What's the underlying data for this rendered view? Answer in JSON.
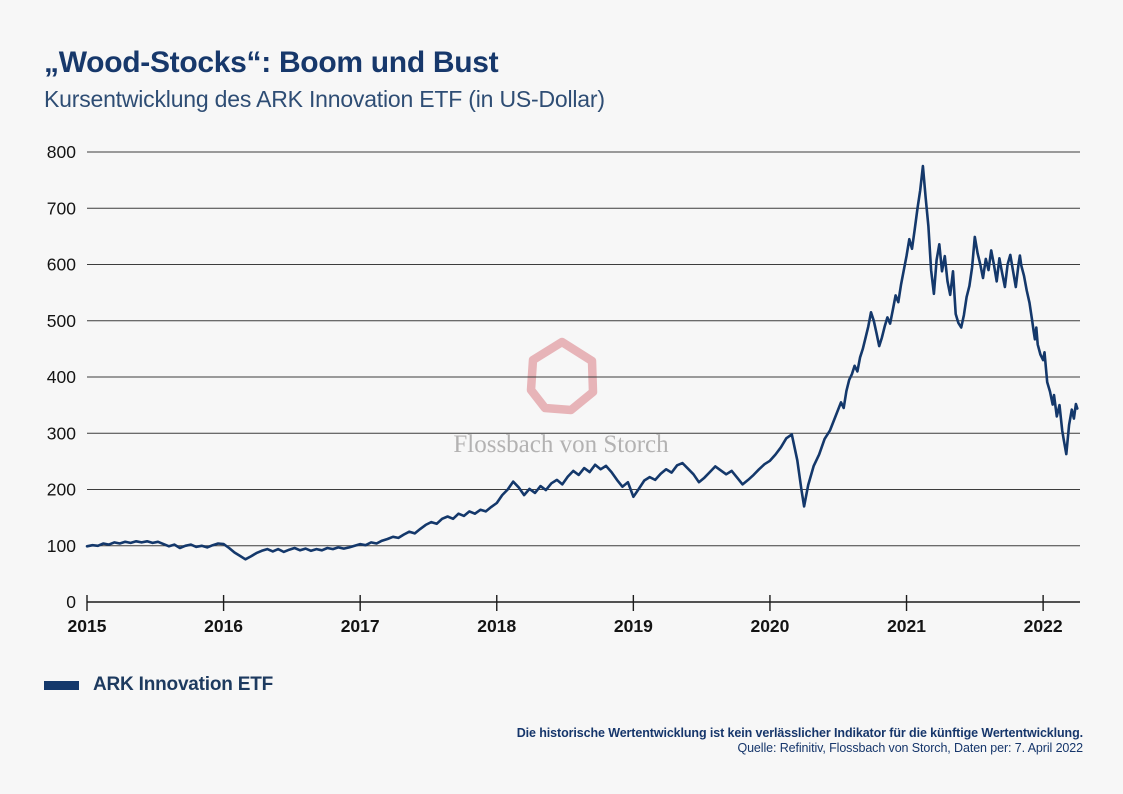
{
  "header": {
    "title": "„Wood-Stocks“: Boom und Bust",
    "subtitle": "Kursentwicklung des ARK Innovation ETF (in US-Dollar)"
  },
  "watermark": {
    "text": "Flossbach von Storch",
    "ring_color": "#e7b4b8",
    "text_color": "#b3b2b2"
  },
  "legend": {
    "label": "ARK Innovation ETF",
    "swatch_color": "#14386b"
  },
  "footer": {
    "disclaimer": "Die historische Wertentwicklung ist kein verlässlicher Indikator für die künftige Wertentwicklung.",
    "source": "Quelle: Refinitiv, Flossbach von Storch, Daten per: 7. April 2022"
  },
  "colors": {
    "accent_navy": "#17386b",
    "line": "#14386b",
    "grid": "#3d3d3d",
    "axis": "#1c1c1c",
    "tick_label": "#141414",
    "background": "#f7f7f7"
  },
  "chart_data": {
    "type": "line",
    "title": "Kursentwicklung des ARK Innovation ETF (in US-Dollar)",
    "xlabel": "",
    "ylabel": "",
    "xlim": [
      2015,
      2022.27
    ],
    "ylim": [
      0,
      800
    ],
    "xticks": [
      2015,
      2016,
      2017,
      2018,
      2019,
      2020,
      2021,
      2022
    ],
    "yticks": [
      0,
      100,
      200,
      300,
      400,
      500,
      600,
      700,
      800
    ],
    "grid": "horizontal",
    "legend_position": "bottom-left",
    "series": [
      {
        "name": "ARK Innovation ETF",
        "color": "#14386b",
        "points": [
          [
            2015.0,
            99
          ],
          [
            2015.04,
            101
          ],
          [
            2015.08,
            100
          ],
          [
            2015.12,
            104
          ],
          [
            2015.16,
            102
          ],
          [
            2015.2,
            106
          ],
          [
            2015.24,
            104
          ],
          [
            2015.28,
            107
          ],
          [
            2015.32,
            105
          ],
          [
            2015.36,
            108
          ],
          [
            2015.4,
            106
          ],
          [
            2015.44,
            108
          ],
          [
            2015.48,
            105
          ],
          [
            2015.52,
            107
          ],
          [
            2015.56,
            103
          ],
          [
            2015.6,
            99
          ],
          [
            2015.64,
            102
          ],
          [
            2015.68,
            96
          ],
          [
            2015.72,
            100
          ],
          [
            2015.76,
            102
          ],
          [
            2015.8,
            98
          ],
          [
            2015.84,
            100
          ],
          [
            2015.88,
            97
          ],
          [
            2015.92,
            101
          ],
          [
            2015.96,
            104
          ],
          [
            2016.0,
            103
          ],
          [
            2016.04,
            96
          ],
          [
            2016.08,
            88
          ],
          [
            2016.12,
            82
          ],
          [
            2016.16,
            76
          ],
          [
            2016.2,
            81
          ],
          [
            2016.24,
            87
          ],
          [
            2016.28,
            91
          ],
          [
            2016.32,
            94
          ],
          [
            2016.36,
            90
          ],
          [
            2016.4,
            94
          ],
          [
            2016.44,
            89
          ],
          [
            2016.48,
            93
          ],
          [
            2016.52,
            96
          ],
          [
            2016.56,
            92
          ],
          [
            2016.6,
            95
          ],
          [
            2016.64,
            91
          ],
          [
            2016.68,
            94
          ],
          [
            2016.72,
            92
          ],
          [
            2016.76,
            96
          ],
          [
            2016.8,
            94
          ],
          [
            2016.84,
            97
          ],
          [
            2016.88,
            95
          ],
          [
            2016.92,
            97
          ],
          [
            2016.96,
            100
          ],
          [
            2017.0,
            103
          ],
          [
            2017.04,
            101
          ],
          [
            2017.08,
            106
          ],
          [
            2017.12,
            104
          ],
          [
            2017.16,
            109
          ],
          [
            2017.2,
            112
          ],
          [
            2017.24,
            116
          ],
          [
            2017.28,
            114
          ],
          [
            2017.32,
            120
          ],
          [
            2017.36,
            125
          ],
          [
            2017.4,
            122
          ],
          [
            2017.44,
            130
          ],
          [
            2017.48,
            137
          ],
          [
            2017.52,
            142
          ],
          [
            2017.56,
            139
          ],
          [
            2017.6,
            148
          ],
          [
            2017.64,
            152
          ],
          [
            2017.68,
            148
          ],
          [
            2017.72,
            157
          ],
          [
            2017.76,
            153
          ],
          [
            2017.8,
            161
          ],
          [
            2017.84,
            157
          ],
          [
            2017.88,
            164
          ],
          [
            2017.92,
            161
          ],
          [
            2017.96,
            169
          ],
          [
            2018.0,
            176
          ],
          [
            2018.04,
            190
          ],
          [
            2018.08,
            200
          ],
          [
            2018.12,
            214
          ],
          [
            2018.16,
            204
          ],
          [
            2018.2,
            190
          ],
          [
            2018.24,
            201
          ],
          [
            2018.28,
            194
          ],
          [
            2018.32,
            206
          ],
          [
            2018.36,
            199
          ],
          [
            2018.4,
            211
          ],
          [
            2018.44,
            217
          ],
          [
            2018.48,
            209
          ],
          [
            2018.52,
            223
          ],
          [
            2018.56,
            233
          ],
          [
            2018.6,
            226
          ],
          [
            2018.64,
            238
          ],
          [
            2018.68,
            231
          ],
          [
            2018.72,
            244
          ],
          [
            2018.76,
            236
          ],
          [
            2018.8,
            242
          ],
          [
            2018.84,
            231
          ],
          [
            2018.88,
            217
          ],
          [
            2018.92,
            205
          ],
          [
            2018.96,
            213
          ],
          [
            2019.0,
            187
          ],
          [
            2019.04,
            201
          ],
          [
            2019.08,
            216
          ],
          [
            2019.12,
            222
          ],
          [
            2019.16,
            217
          ],
          [
            2019.2,
            228
          ],
          [
            2019.24,
            236
          ],
          [
            2019.28,
            230
          ],
          [
            2019.32,
            243
          ],
          [
            2019.36,
            247
          ],
          [
            2019.4,
            237
          ],
          [
            2019.44,
            227
          ],
          [
            2019.48,
            213
          ],
          [
            2019.52,
            221
          ],
          [
            2019.56,
            231
          ],
          [
            2019.6,
            241
          ],
          [
            2019.64,
            234
          ],
          [
            2019.68,
            227
          ],
          [
            2019.72,
            233
          ],
          [
            2019.76,
            221
          ],
          [
            2019.8,
            209
          ],
          [
            2019.84,
            217
          ],
          [
            2019.88,
            226
          ],
          [
            2019.92,
            236
          ],
          [
            2019.96,
            245
          ],
          [
            2020.0,
            251
          ],
          [
            2020.04,
            262
          ],
          [
            2020.08,
            275
          ],
          [
            2020.12,
            291
          ],
          [
            2020.16,
            298
          ],
          [
            2020.2,
            252
          ],
          [
            2020.23,
            200
          ],
          [
            2020.25,
            170
          ],
          [
            2020.28,
            208
          ],
          [
            2020.32,
            242
          ],
          [
            2020.36,
            262
          ],
          [
            2020.4,
            290
          ],
          [
            2020.44,
            305
          ],
          [
            2020.48,
            330
          ],
          [
            2020.52,
            355
          ],
          [
            2020.54,
            345
          ],
          [
            2020.56,
            375
          ],
          [
            2020.58,
            395
          ],
          [
            2020.6,
            405
          ],
          [
            2020.62,
            420
          ],
          [
            2020.64,
            410
          ],
          [
            2020.66,
            435
          ],
          [
            2020.68,
            450
          ],
          [
            2020.7,
            470
          ],
          [
            2020.72,
            490
          ],
          [
            2020.74,
            515
          ],
          [
            2020.76,
            500
          ],
          [
            2020.78,
            478
          ],
          [
            2020.8,
            455
          ],
          [
            2020.82,
            470
          ],
          [
            2020.84,
            490
          ],
          [
            2020.86,
            506
          ],
          [
            2020.88,
            495
          ],
          [
            2020.9,
            520
          ],
          [
            2020.92,
            545
          ],
          [
            2020.94,
            533
          ],
          [
            2020.96,
            565
          ],
          [
            2020.98,
            590
          ],
          [
            2021.0,
            615
          ],
          [
            2021.02,
            645
          ],
          [
            2021.04,
            628
          ],
          [
            2021.06,
            662
          ],
          [
            2021.08,
            700
          ],
          [
            2021.1,
            732
          ],
          [
            2021.12,
            775
          ],
          [
            2021.14,
            718
          ],
          [
            2021.16,
            668
          ],
          [
            2021.18,
            590
          ],
          [
            2021.2,
            548
          ],
          [
            2021.22,
            608
          ],
          [
            2021.24,
            636
          ],
          [
            2021.26,
            588
          ],
          [
            2021.28,
            615
          ],
          [
            2021.3,
            570
          ],
          [
            2021.32,
            546
          ],
          [
            2021.34,
            588
          ],
          [
            2021.36,
            512
          ],
          [
            2021.38,
            496
          ],
          [
            2021.4,
            488
          ],
          [
            2021.42,
            510
          ],
          [
            2021.44,
            542
          ],
          [
            2021.46,
            562
          ],
          [
            2021.48,
            595
          ],
          [
            2021.5,
            649
          ],
          [
            2021.52,
            620
          ],
          [
            2021.54,
            600
          ],
          [
            2021.56,
            576
          ],
          [
            2021.58,
            610
          ],
          [
            2021.6,
            590
          ],
          [
            2021.62,
            625
          ],
          [
            2021.64,
            600
          ],
          [
            2021.66,
            570
          ],
          [
            2021.68,
            611
          ],
          [
            2021.7,
            585
          ],
          [
            2021.72,
            560
          ],
          [
            2021.74,
            600
          ],
          [
            2021.76,
            617
          ],
          [
            2021.78,
            588
          ],
          [
            2021.8,
            560
          ],
          [
            2021.82,
            600
          ],
          [
            2021.83,
            616
          ],
          [
            2021.84,
            598
          ],
          [
            2021.86,
            580
          ],
          [
            2021.88,
            554
          ],
          [
            2021.9,
            532
          ],
          [
            2021.92,
            500
          ],
          [
            2021.93,
            482
          ],
          [
            2021.94,
            467
          ],
          [
            2021.95,
            488
          ],
          [
            2021.96,
            458
          ],
          [
            2021.98,
            440
          ],
          [
            2022.0,
            430
          ],
          [
            2022.01,
            444
          ],
          [
            2022.03,
            391
          ],
          [
            2022.05,
            374
          ],
          [
            2022.07,
            351
          ],
          [
            2022.08,
            368
          ],
          [
            2022.1,
            330
          ],
          [
            2022.12,
            350
          ],
          [
            2022.14,
            305
          ],
          [
            2022.15,
            290
          ],
          [
            2022.17,
            263
          ],
          [
            2022.19,
            315
          ],
          [
            2022.21,
            342
          ],
          [
            2022.225,
            326
          ],
          [
            2022.24,
            352
          ],
          [
            2022.25,
            344
          ]
        ]
      }
    ]
  }
}
